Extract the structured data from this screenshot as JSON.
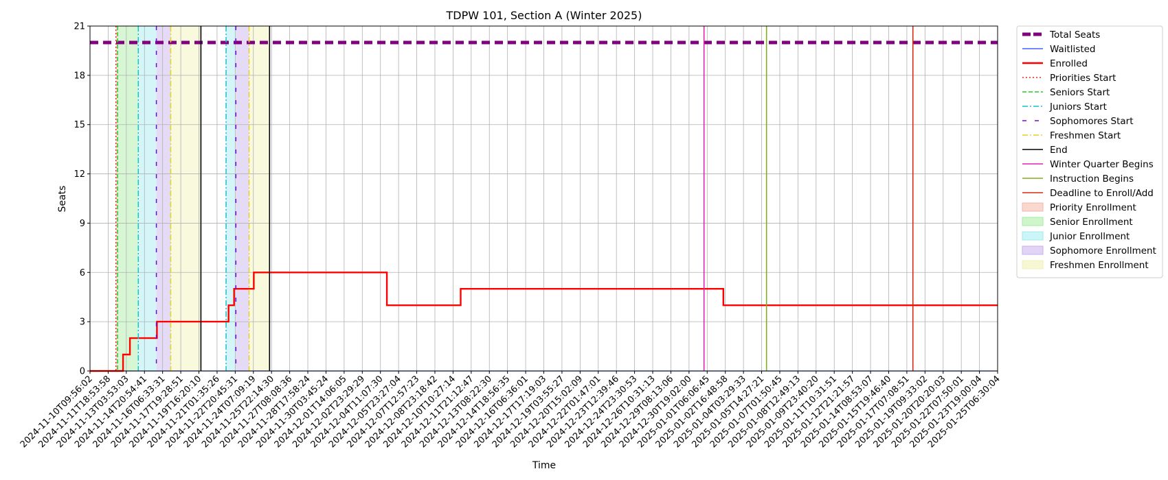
{
  "chart_data": {
    "type": "line",
    "title": "TDPW 101, Section A (Winter 2025)",
    "xlabel": "Time",
    "ylabel": "Seats",
    "ylim": [
      0,
      21
    ],
    "y_ticks": [
      0,
      3,
      6,
      9,
      12,
      15,
      18,
      21
    ],
    "grid": true,
    "legend_position": "outside right",
    "x_tick_labels": [
      "2024-11-10T09:56:02",
      "2024-11-11T18:53:58",
      "2024-11-13T03:53:03",
      "2024-11-14T20:54:41",
      "2024-11-16T06:33:31",
      "2024-11-17T19:28:51",
      "2024-11-19T16:20:10",
      "2024-11-21T01:35:26",
      "2024-11-22T20:45:31",
      "2024-11-24T07:09:19",
      "2024-11-25T22:14:30",
      "2024-11-27T08:08:36",
      "2024-11-28T17:58:24",
      "2024-11-30T03:45:24",
      "2024-12-01T14:06:05",
      "2024-12-02T23:29:29",
      "2024-12-04T11:07:30",
      "2024-12-05T23:27:04",
      "2024-12-07T12:57:23",
      "2024-12-08T23:18:42",
      "2024-12-10T10:27:14",
      "2024-12-11T21:12:47",
      "2024-12-13T08:22:30",
      "2024-12-14T18:56:35",
      "2024-12-16T06:36:01",
      "2024-12-17T17:19:03",
      "2024-12-19T03:55:27",
      "2024-12-20T15:02:09",
      "2024-12-22T01:47:01",
      "2024-12-23T12:39:46",
      "2024-12-24T23:30:53",
      "2024-12-26T10:31:13",
      "2024-12-29T08:13:06",
      "2024-12-30T19:02:00",
      "2025-01-01T06:06:45",
      "2025-01-02T16:48:58",
      "2025-01-04T03:29:33",
      "2025-01-05T14:27:21",
      "2025-01-07T01:50:45",
      "2025-01-08T12:49:13",
      "2025-01-09T23:40:20",
      "2025-01-11T10:31:51",
      "2025-01-12T21:21:57",
      "2025-01-14T08:53:07",
      "2025-01-15T19:46:40",
      "2025-01-17T07:08:51",
      "2025-01-19T09:33:02",
      "2025-01-20T20:20:03",
      "2025-01-22T07:50:01",
      "2025-01-23T19:00:04",
      "2025-01-25T06:30:04"
    ],
    "series": [
      {
        "name": "Total Seats",
        "color": "#800080",
        "style": "dashed-thick",
        "points": [
          [
            "2024-11-10T09:56:02",
            20
          ],
          [
            "2025-01-25T06:30:04",
            20
          ]
        ]
      },
      {
        "name": "Waitlisted",
        "color": "#1f3fff",
        "style": "solid-thin",
        "points": [
          [
            "2024-11-10T09:56:02",
            0
          ],
          [
            "2025-01-25T06:30:04",
            0
          ]
        ]
      },
      {
        "name": "Enrolled",
        "color": "#ff0000",
        "style": "solid-thick",
        "points": [
          [
            "2024-11-10T09:56:02",
            0
          ],
          [
            "2024-11-12T22:00:00",
            0
          ],
          [
            "2024-11-12T22:00:00",
            1
          ],
          [
            "2024-11-13T12:00:00",
            1
          ],
          [
            "2024-11-13T12:00:00",
            2
          ],
          [
            "2024-11-15T20:00:00",
            2
          ],
          [
            "2024-11-15T20:00:00",
            3
          ],
          [
            "2024-11-22T05:00:00",
            3
          ],
          [
            "2024-11-22T05:00:00",
            4
          ],
          [
            "2024-11-22T18:00:00",
            4
          ],
          [
            "2024-11-22T18:00:00",
            5
          ],
          [
            "2024-11-24T08:00:00",
            5
          ],
          [
            "2024-11-24T08:00:00",
            6
          ],
          [
            "2024-12-05T00:00:00",
            6
          ],
          [
            "2024-12-05T00:00:00",
            4
          ],
          [
            "2024-12-11T01:00:00",
            4
          ],
          [
            "2024-12-11T01:00:00",
            5
          ],
          [
            "2025-01-02T13:00:00",
            5
          ],
          [
            "2025-01-02T13:00:00",
            4
          ],
          [
            "2025-01-25T06:30:04",
            4
          ]
        ]
      }
    ],
    "markers": [
      {
        "name": "Priorities Start",
        "color": "#ff2020",
        "style": "dotted",
        "times": [
          "2024-11-12T09:00:00"
        ]
      },
      {
        "name": "Seniors Start",
        "color": "#22cc22",
        "style": "dashed",
        "times": [
          "2024-11-12T12:00:00"
        ]
      },
      {
        "name": "Juniors Start",
        "color": "#17becf",
        "style": "dashdot",
        "times": [
          "2024-11-14T07:00:00",
          "2024-11-21T23:00:00"
        ]
      },
      {
        "name": "Sophomores Start",
        "color": "#6a0dd8",
        "style": "loosedash",
        "times": [
          "2024-11-15T19:00:00",
          "2024-11-22T22:00:00"
        ]
      },
      {
        "name": "Freshmen Start",
        "color": "#e5d21a",
        "style": "dashdot",
        "times": [
          "2024-11-16T23:00:00",
          "2024-11-23T23:00:00"
        ]
      },
      {
        "name": "End",
        "color": "#000000",
        "style": "solid",
        "times": [
          "2024-11-19T20:00:00",
          "2024-11-25T18:00:00"
        ]
      },
      {
        "name": "Winter Quarter Begins",
        "color": "#e020b0",
        "style": "solid",
        "times": [
          "2025-01-01T00:00:00"
        ]
      },
      {
        "name": "Instruction Begins",
        "color": "#7faf1f",
        "style": "solid",
        "times": [
          "2025-01-06T00:00:00"
        ]
      },
      {
        "name": "Deadline to Enroll/Add",
        "color": "#d62a10",
        "style": "solid",
        "times": [
          "2025-01-17T23:59:00"
        ]
      }
    ],
    "periods": [
      {
        "name": "Priority Enrollment",
        "color": "#f4b8a8",
        "ranges": [
          [
            "2024-11-12T09:00:00",
            "2024-11-12T12:00:00"
          ]
        ]
      },
      {
        "name": "Senior Enrollment",
        "color": "#a6eda0",
        "ranges": [
          [
            "2024-11-12T12:00:00",
            "2024-11-14T07:00:00"
          ]
        ]
      },
      {
        "name": "Junior Enrollment",
        "color": "#a0ecf0",
        "ranges": [
          [
            "2024-11-14T07:00:00",
            "2024-11-15T19:00:00"
          ],
          [
            "2024-11-21T23:00:00",
            "2024-11-22T22:00:00"
          ]
        ]
      },
      {
        "name": "Sophomore Enrollment",
        "color": "#c8b0ee",
        "ranges": [
          [
            "2024-11-15T19:00:00",
            "2024-11-16T23:00:00"
          ],
          [
            "2024-11-22T22:00:00",
            "2024-11-23T23:00:00"
          ]
        ]
      },
      {
        "name": "Freshmen Enrollment",
        "color": "#f1f1b4",
        "ranges": [
          [
            "2024-11-16T23:00:00",
            "2024-11-19T20:00:00"
          ],
          [
            "2024-11-23T23:00:00",
            "2024-11-25T18:00:00"
          ]
        ]
      }
    ]
  }
}
